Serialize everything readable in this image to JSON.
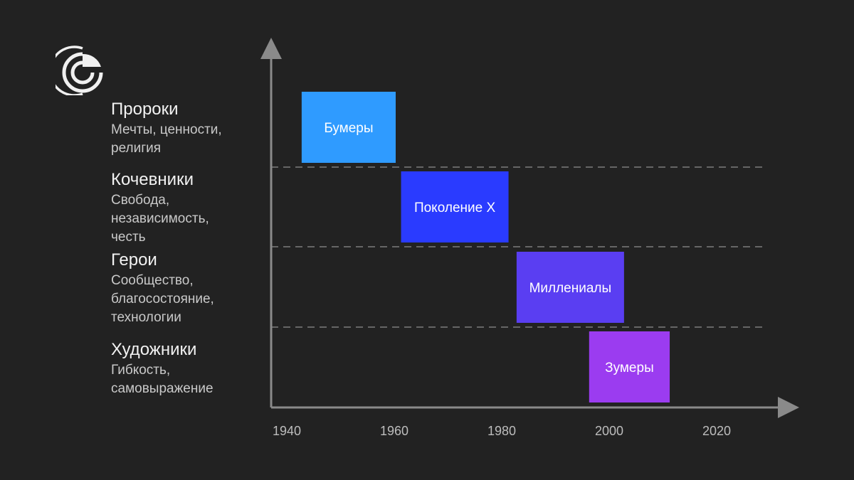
{
  "logo": {
    "icon": "brand-logo-icon"
  },
  "categories": [
    {
      "title": "Пророки",
      "desc": [
        "Мечты, ценности,",
        "религия"
      ]
    },
    {
      "title": "Кочевники",
      "desc": [
        "Свобода,",
        "независимость,",
        "честь"
      ]
    },
    {
      "title": "Герои",
      "desc": [
        "Сообщество,",
        "благосостояние,",
        "технологии"
      ]
    },
    {
      "title": "Художники",
      "desc": [
        "Гибкость,",
        "самовыражение"
      ]
    }
  ],
  "chart_data": {
    "type": "bar",
    "orientation": "horizontal-range",
    "xlim": [
      1940,
      2030
    ],
    "x_ticks": [
      "1940",
      "1960",
      "1980",
      "2000",
      "2020"
    ],
    "x_tick_values": [
      1940,
      1960,
      1980,
      2000,
      2020
    ],
    "rows": [
      "Пророки",
      "Кочевники",
      "Герои",
      "Художники"
    ],
    "series": [
      {
        "name": "Бумеры",
        "start": 1942.5,
        "end": 1960,
        "row": 0,
        "color": "#2f9bff"
      },
      {
        "name": "Поколение X",
        "start": 1961,
        "end": 1981,
        "row": 1,
        "color": "#2a3bff"
      },
      {
        "name": "Миллениалы",
        "start": 1982.5,
        "end": 2002.5,
        "row": 2,
        "color": "#5a3ef2"
      },
      {
        "name": "Зумеры",
        "start": 1996,
        "end": 2011,
        "row": 3,
        "color": "#9b3cf0"
      }
    ],
    "grid": "dashed row separators",
    "axis_color": "#8a8a8a"
  }
}
